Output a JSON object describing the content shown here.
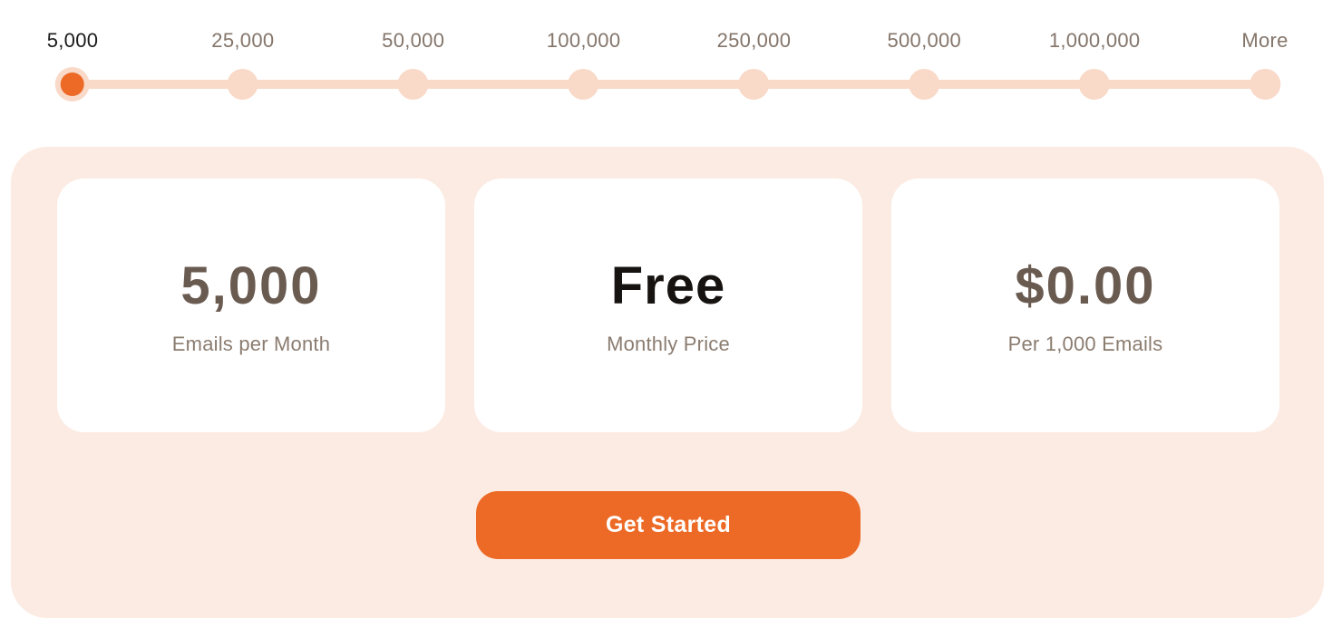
{
  "slider": {
    "name": "email-volume-slider",
    "selected_value": "5,000",
    "stops": [
      {
        "label": "5,000",
        "active": true
      },
      {
        "label": "25,000",
        "active": false
      },
      {
        "label": "50,000",
        "active": false
      },
      {
        "label": "100,000",
        "active": false
      },
      {
        "label": "250,000",
        "active": false
      },
      {
        "label": "500,000",
        "active": false
      },
      {
        "label": "1,000,000",
        "active": false
      },
      {
        "label": "More",
        "active": false
      }
    ]
  },
  "panel": {
    "cards": [
      {
        "value": "5,000",
        "label": "Emails per Month",
        "emphasis": "muted"
      },
      {
        "value": "Free",
        "label": "Monthly Price",
        "emphasis": "dark"
      },
      {
        "value": "$0.00",
        "label": "Per 1,000 Emails",
        "emphasis": "muted"
      }
    ],
    "cta_label": "Get Started"
  },
  "colors": {
    "accent_orange": "#ED6A26",
    "track_pink": "#F9D9C8",
    "panel_pink": "#FCEBE3",
    "slider_label_muted": "#84756A",
    "slider_label_active": "#1A1A1A",
    "card_value_brown": "#6A5B51",
    "card_value_dark": "#161311",
    "card_sublabel": "#8B7C70"
  }
}
